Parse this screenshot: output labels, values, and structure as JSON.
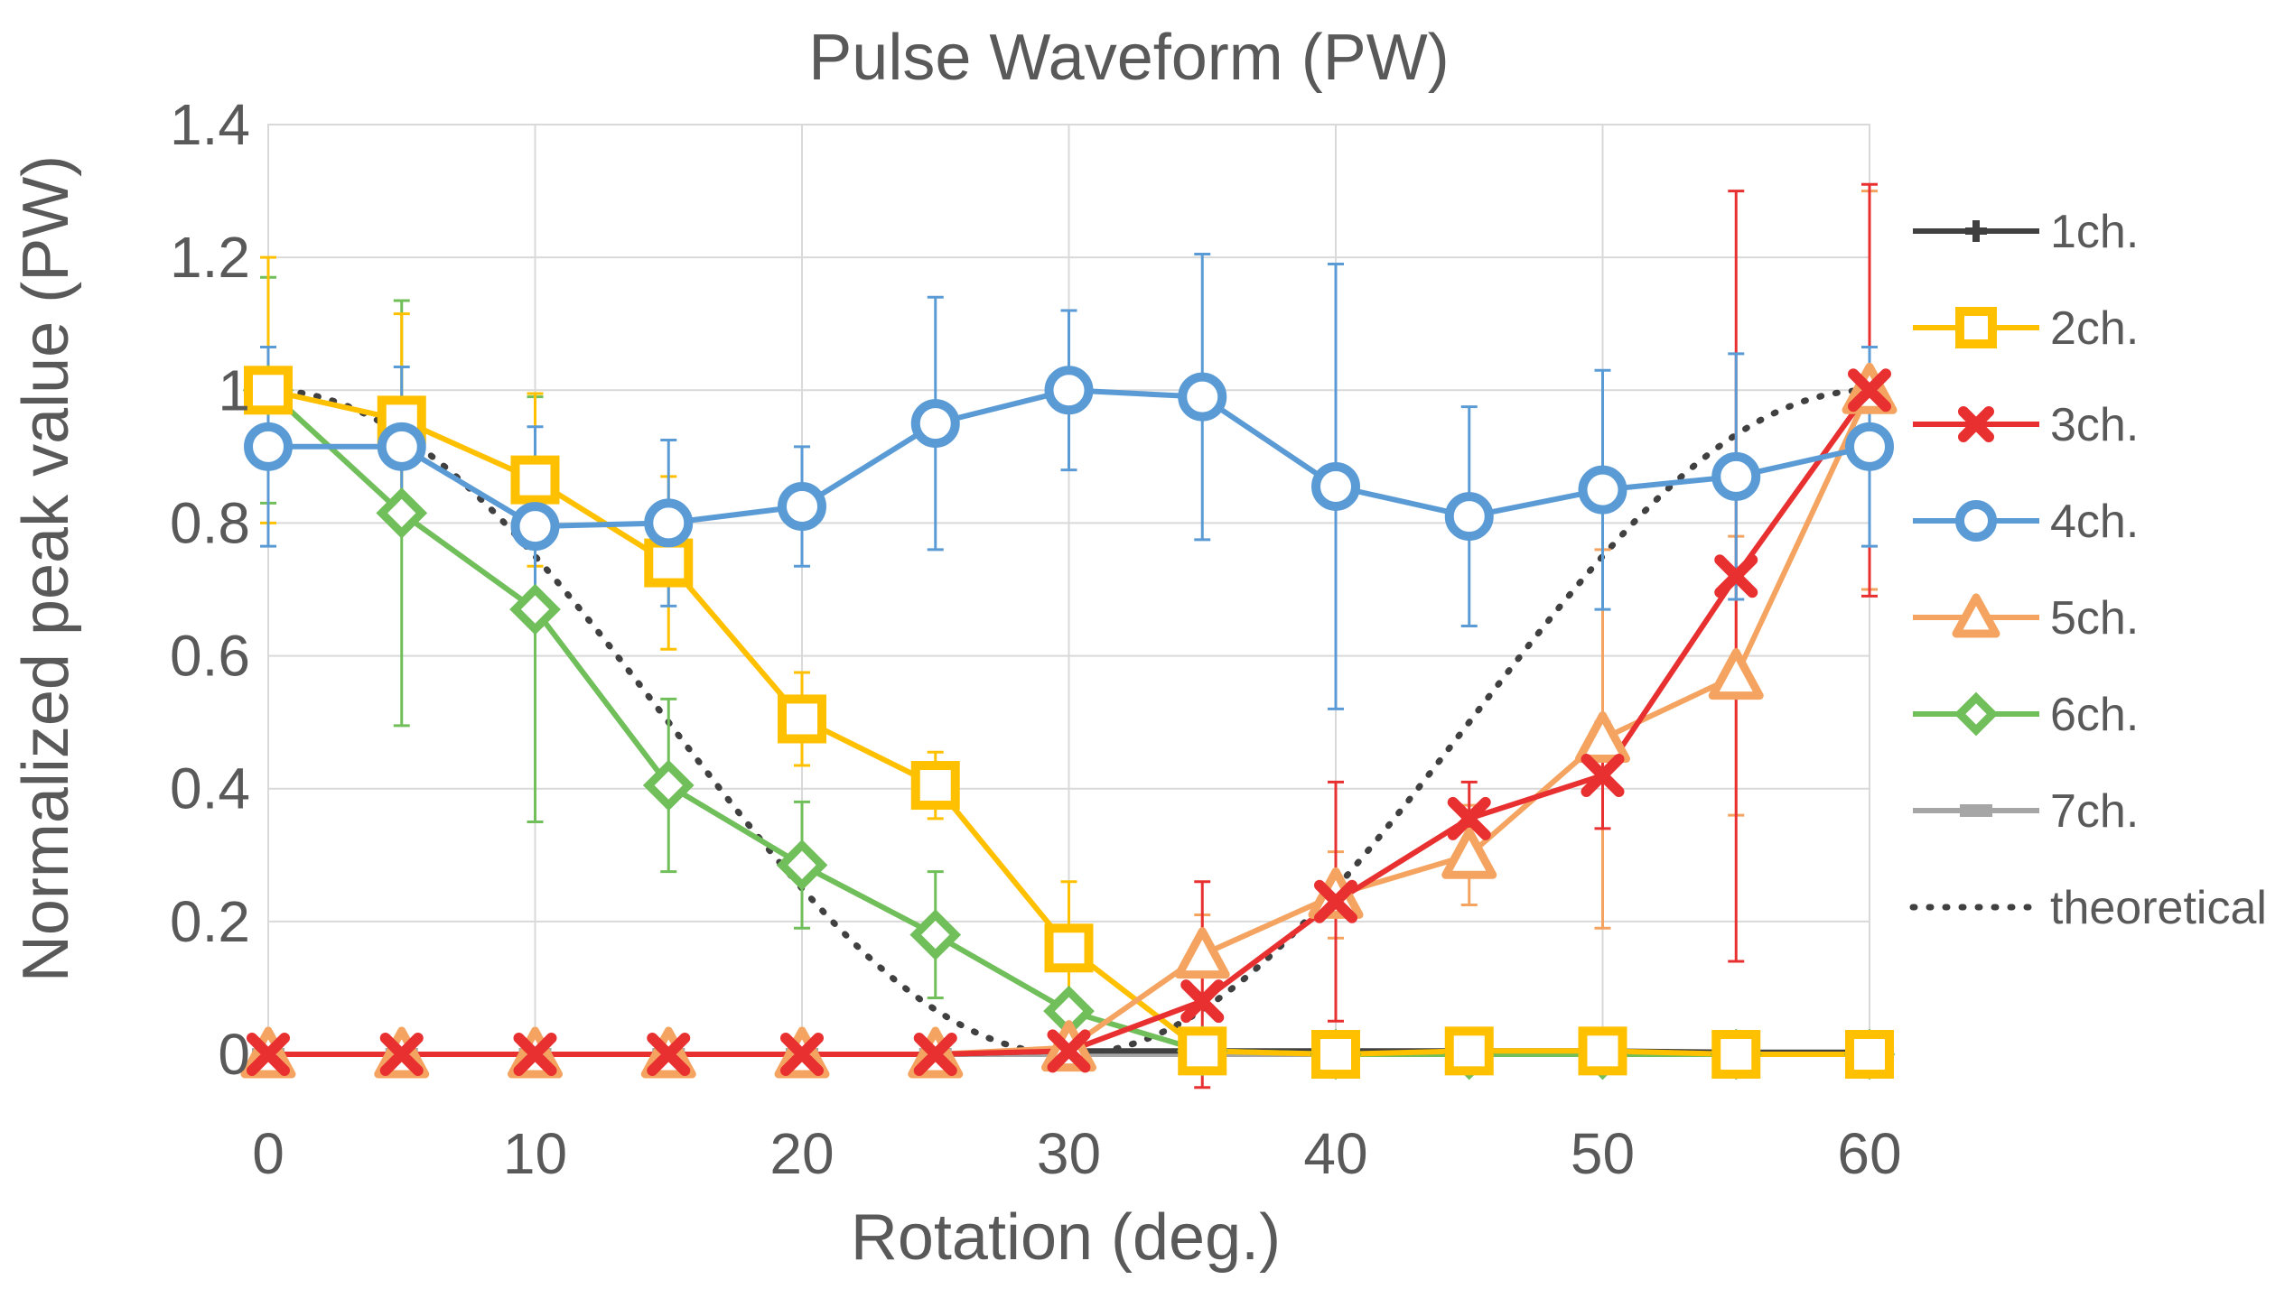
{
  "chart_data": {
    "type": "line",
    "title": "Pulse Waveform (PW)",
    "xlabel": "Rotation (deg.)",
    "ylabel": "Normalized peak value (PW)",
    "xlim": [
      0,
      60
    ],
    "ylim": [
      0,
      1.4
    ],
    "x_ticks": [
      "0",
      "10",
      "20",
      "30",
      "40",
      "50",
      "60"
    ],
    "y_ticks": [
      "0",
      "0.2",
      "0.4",
      "0.6",
      "0.8",
      "1",
      "1.2",
      "1.4"
    ],
    "grid": true,
    "legend_position": "right",
    "x": [
      0,
      5,
      10,
      15,
      20,
      25,
      30,
      35,
      40,
      45,
      50,
      55,
      60
    ],
    "series": [
      {
        "name": "1ch.",
        "color": "#404040",
        "marker": "plus",
        "values": [
          0,
          0,
          0,
          0,
          0,
          0,
          0.005,
          0.005,
          0.005,
          0.005,
          0.005,
          0.003,
          0.003
        ]
      },
      {
        "name": "2ch.",
        "color": "#FFC000",
        "marker": "square",
        "values": [
          1.0,
          0.955,
          0.865,
          0.74,
          0.505,
          0.405,
          0.16,
          0.005,
          0.0,
          0.005,
          0.005,
          0.0,
          0.0
        ],
        "errors": [
          0.2,
          0.16,
          0.13,
          0.13,
          0.07,
          0.05,
          0.1,
          0.0,
          0.0,
          0.0,
          0.0,
          0.0,
          0.0
        ]
      },
      {
        "name": "3ch.",
        "color": "#E83030",
        "marker": "x",
        "values": [
          0,
          0,
          0,
          0,
          0,
          0,
          0.005,
          0.08,
          0.23,
          0.355,
          0.42,
          0.72,
          1.0
        ],
        "errors": [
          0,
          0,
          0,
          0,
          0,
          0,
          0,
          0.18,
          0.18,
          0.055,
          0.08,
          0.58,
          0.31
        ]
      },
      {
        "name": "4ch.",
        "color": "#5B9BD5",
        "marker": "circle",
        "values": [
          0.915,
          0.915,
          0.795,
          0.8,
          0.825,
          0.95,
          1.0,
          0.99,
          0.855,
          0.81,
          0.85,
          0.87,
          0.915
        ],
        "errors": [
          0.15,
          0.12,
          0.15,
          0.125,
          0.09,
          0.19,
          0.12,
          0.215,
          0.335,
          0.165,
          0.18,
          0.185,
          0.15
        ]
      },
      {
        "name": "5ch.",
        "color": "#F4A460",
        "marker": "triangle",
        "values": [
          0,
          0,
          0,
          0,
          0,
          0,
          0.01,
          0.15,
          0.24,
          0.3,
          0.475,
          0.57,
          1.0
        ],
        "errors": [
          0,
          0,
          0,
          0,
          0,
          0,
          0,
          0.06,
          0.065,
          0.075,
          0.285,
          0.21,
          0.3
        ]
      },
      {
        "name": "6ch.",
        "color": "#70BF5A",
        "marker": "diamond",
        "values": [
          1.0,
          0.815,
          0.67,
          0.405,
          0.285,
          0.18,
          0.065,
          0.005,
          0.0,
          0.0,
          0.0,
          0.0,
          0.0
        ],
        "errors": [
          0.17,
          0.32,
          0.32,
          0.13,
          0.095,
          0.095,
          0.0,
          0.0,
          0.0,
          0.0,
          0.0,
          0.0,
          0.0
        ]
      },
      {
        "name": "7ch.",
        "color": "#A6A6A6",
        "marker": "dash",
        "values": [
          0,
          0,
          0,
          0,
          0,
          0,
          0,
          0,
          0,
          0,
          0,
          0,
          0
        ]
      },
      {
        "name": "theoretical",
        "color": "#404040",
        "marker": "none",
        "dotted": true,
        "curve": "cos(3x)^2"
      }
    ]
  }
}
